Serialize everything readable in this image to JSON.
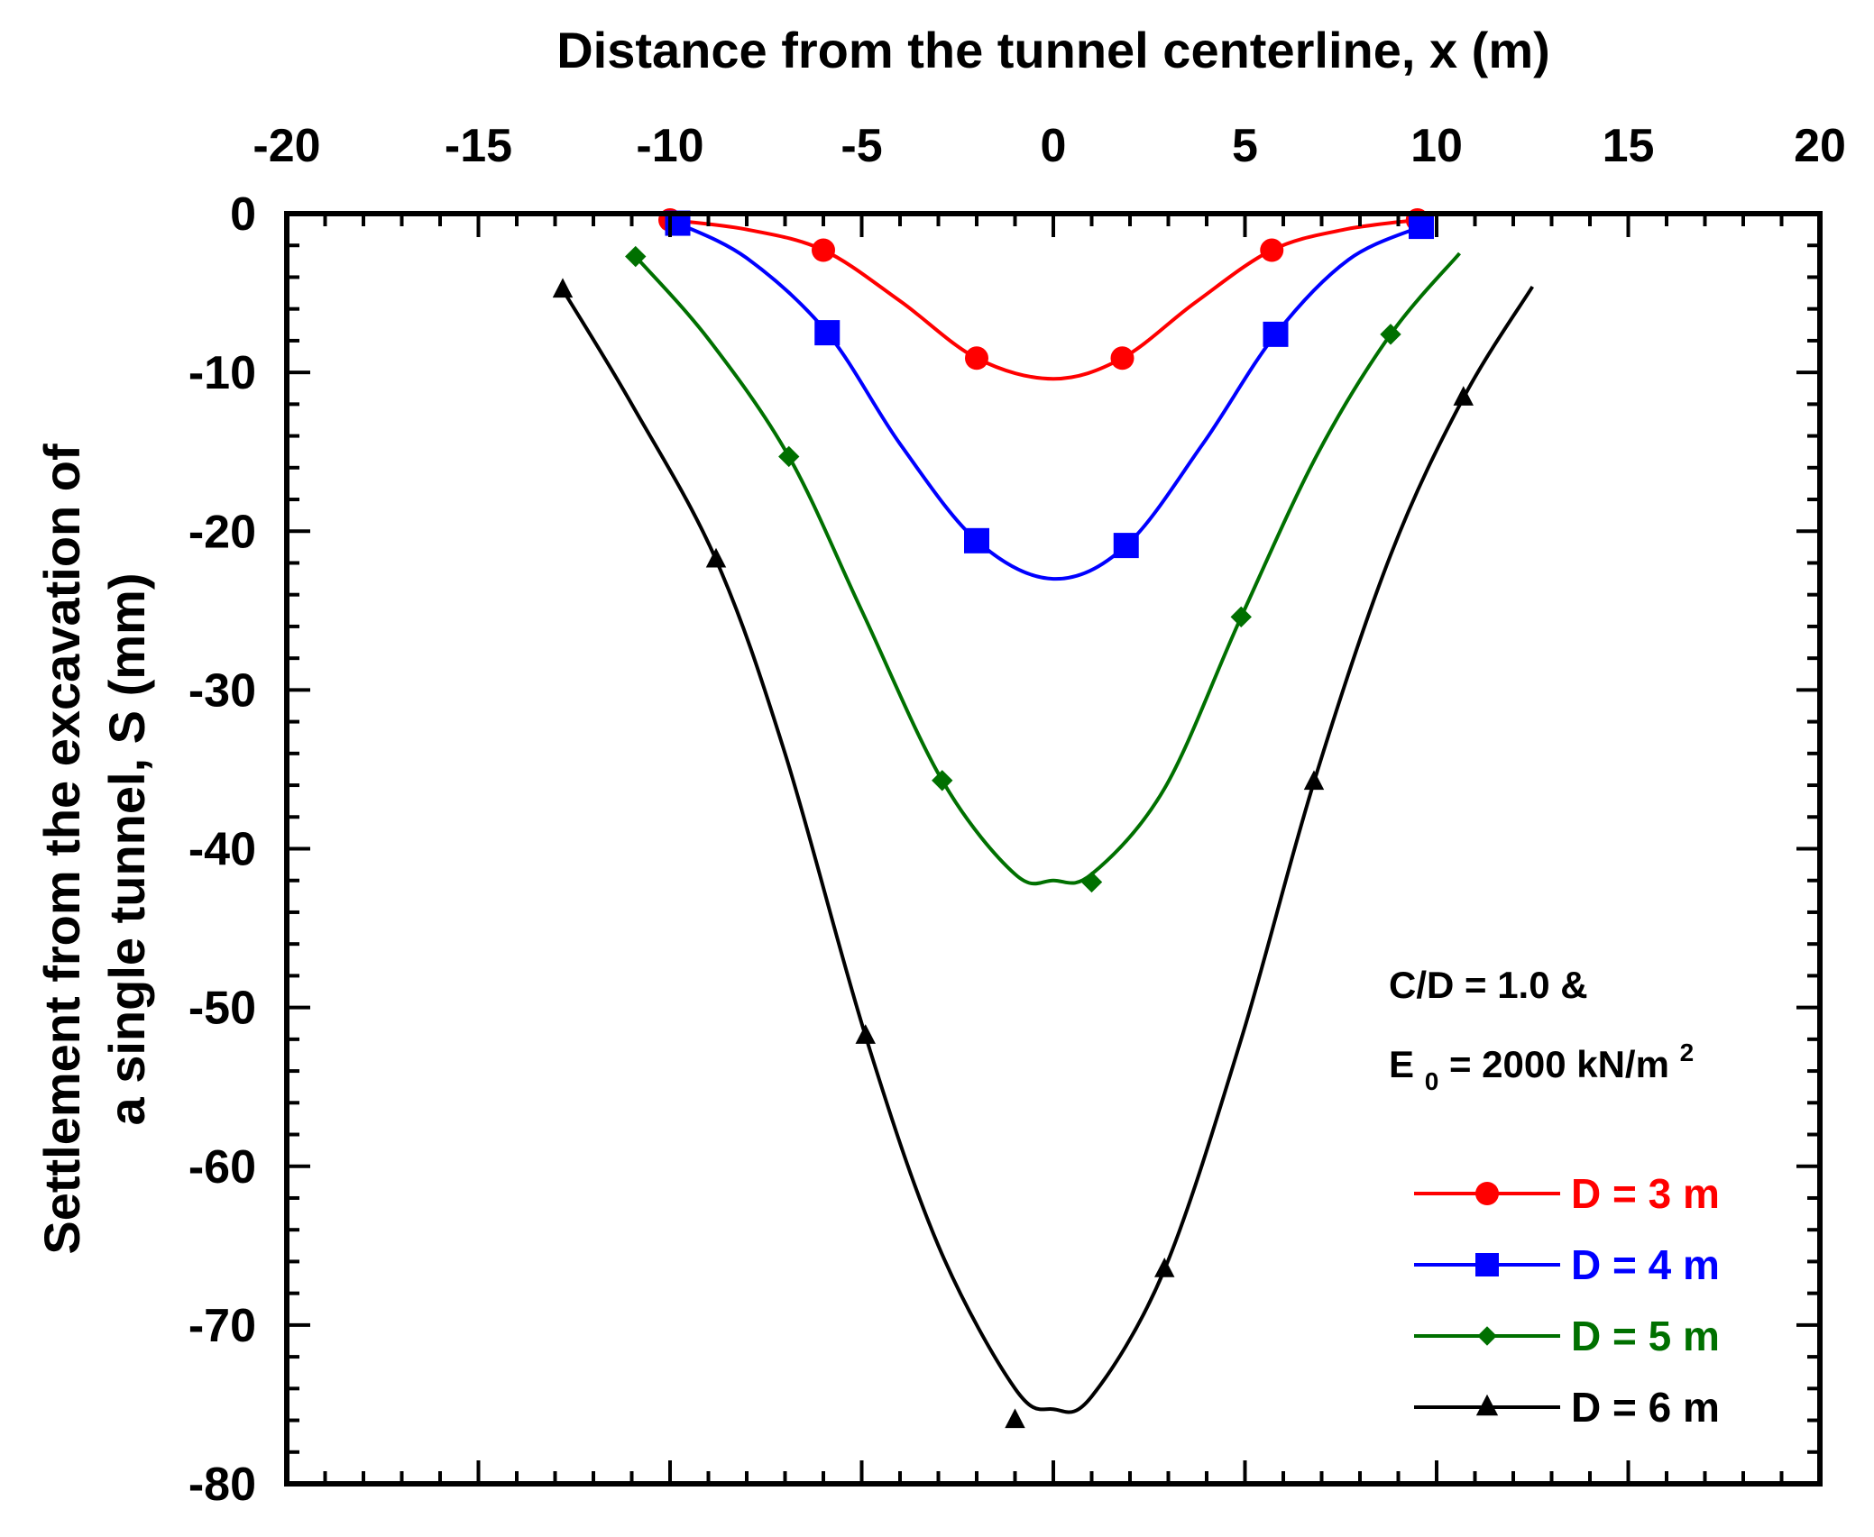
{
  "chart_data": {
    "type": "line",
    "xlabel": "Distance from the tunnel centerline, x (m)",
    "ylabel_line1": "Settlement from the excavation of",
    "ylabel_line2": "a single tunnel, S (mm)",
    "xlim": [
      -20,
      20
    ],
    "ylim": [
      -80,
      0
    ],
    "x_ticks": [
      -20,
      -15,
      -10,
      -5,
      0,
      5,
      10,
      15,
      20
    ],
    "y_ticks": [
      0,
      -10,
      -20,
      -30,
      -40,
      -50,
      -60,
      -70,
      -80
    ],
    "x_tick_labels": [
      "-20",
      "-15",
      "-10",
      "-5",
      "0",
      "5",
      "10",
      "15",
      "20"
    ],
    "y_tick_labels": [
      "0",
      "-10",
      "-20",
      "-30",
      "-40",
      "-50",
      "-60",
      "-70",
      "-80"
    ],
    "x_axis_position": "top",
    "grid": false,
    "annotation": {
      "line1": "C/D = 1.0 &",
      "line2_prefix": "E",
      "line2_sub": "0",
      "line2_mid": " = 2000 kN/m",
      "line2_sup": "2"
    },
    "legend_position": "bottom-right",
    "series": [
      {
        "name": "D = 3 m",
        "color": "#ff0000",
        "marker": "circle",
        "points": [
          [
            -10,
            -0.4
          ],
          [
            -6,
            -2.3
          ],
          [
            -2,
            -9.1
          ],
          [
            1.8,
            -9.1
          ],
          [
            5.7,
            -2.3
          ],
          [
            9.5,
            -0.4
          ]
        ],
        "curve": [
          [
            -10,
            -0.4
          ],
          [
            -8,
            -1.0
          ],
          [
            -6,
            -2.3
          ],
          [
            -4,
            -5.5
          ],
          [
            -2,
            -9.1
          ],
          [
            0,
            -10.4
          ],
          [
            1.8,
            -9.1
          ],
          [
            3.7,
            -5.6
          ],
          [
            5.7,
            -2.3
          ],
          [
            7.6,
            -1.0
          ],
          [
            9.5,
            -0.4
          ]
        ]
      },
      {
        "name": "D = 4 m",
        "color": "#0000ff",
        "marker": "square",
        "points": [
          [
            -9.8,
            -0.6
          ],
          [
            -5.9,
            -7.5
          ],
          [
            -2,
            -20.6
          ],
          [
            1.9,
            -20.9
          ],
          [
            5.8,
            -7.6
          ],
          [
            9.6,
            -0.8
          ]
        ],
        "curve": [
          [
            -9.8,
            -0.6
          ],
          [
            -8,
            -2.8
          ],
          [
            -5.9,
            -7.5
          ],
          [
            -4,
            -14.5
          ],
          [
            -2,
            -20.6
          ],
          [
            0,
            -23.0
          ],
          [
            1.9,
            -20.9
          ],
          [
            3.9,
            -14.5
          ],
          [
            5.8,
            -7.6
          ],
          [
            7.7,
            -2.9
          ],
          [
            9.6,
            -0.8
          ]
        ]
      },
      {
        "name": "D = 5 m",
        "color": "#007000",
        "marker": "diamond",
        "points": [
          [
            -10.9,
            -2.7
          ],
          [
            -6.9,
            -15.3
          ],
          [
            -2.9,
            -35.7
          ],
          [
            1,
            -42.1
          ],
          [
            4.9,
            -25.4
          ],
          [
            8.8,
            -7.6
          ]
        ],
        "curve": [
          [
            -10.9,
            -2.7
          ],
          [
            -9,
            -7.9
          ],
          [
            -6.9,
            -15.3
          ],
          [
            -5,
            -25.0
          ],
          [
            -2.9,
            -35.7
          ],
          [
            -1,
            -41.6
          ],
          [
            0,
            -42.0
          ],
          [
            1,
            -41.6
          ],
          [
            2.9,
            -36.2
          ],
          [
            4.9,
            -25.4
          ],
          [
            6.9,
            -15.1
          ],
          [
            8.8,
            -7.6
          ],
          [
            10.6,
            -2.5
          ]
        ]
      },
      {
        "name": "D = 6 m",
        "color": "#000000",
        "marker": "triangle",
        "points": [
          [
            -12.8,
            -4.8
          ],
          [
            -8.8,
            -21.8
          ],
          [
            -4.9,
            -51.8
          ],
          [
            -1,
            -76.0
          ],
          [
            2.9,
            -66.5
          ],
          [
            6.8,
            -35.8
          ],
          [
            10.7,
            -11.6
          ]
        ],
        "curve": [
          [
            -12.8,
            -4.8
          ],
          [
            -11,
            -12.0
          ],
          [
            -8.8,
            -21.8
          ],
          [
            -7,
            -34.0
          ],
          [
            -4.9,
            -51.8
          ],
          [
            -3,
            -65.0
          ],
          [
            -1,
            -74.0
          ],
          [
            0,
            -75.3
          ],
          [
            1,
            -74.5
          ],
          [
            2.9,
            -66.5
          ],
          [
            4.9,
            -52.0
          ],
          [
            6.8,
            -35.8
          ],
          [
            8.8,
            -21.5
          ],
          [
            10.7,
            -11.6
          ],
          [
            12.5,
            -4.6
          ]
        ]
      }
    ]
  }
}
